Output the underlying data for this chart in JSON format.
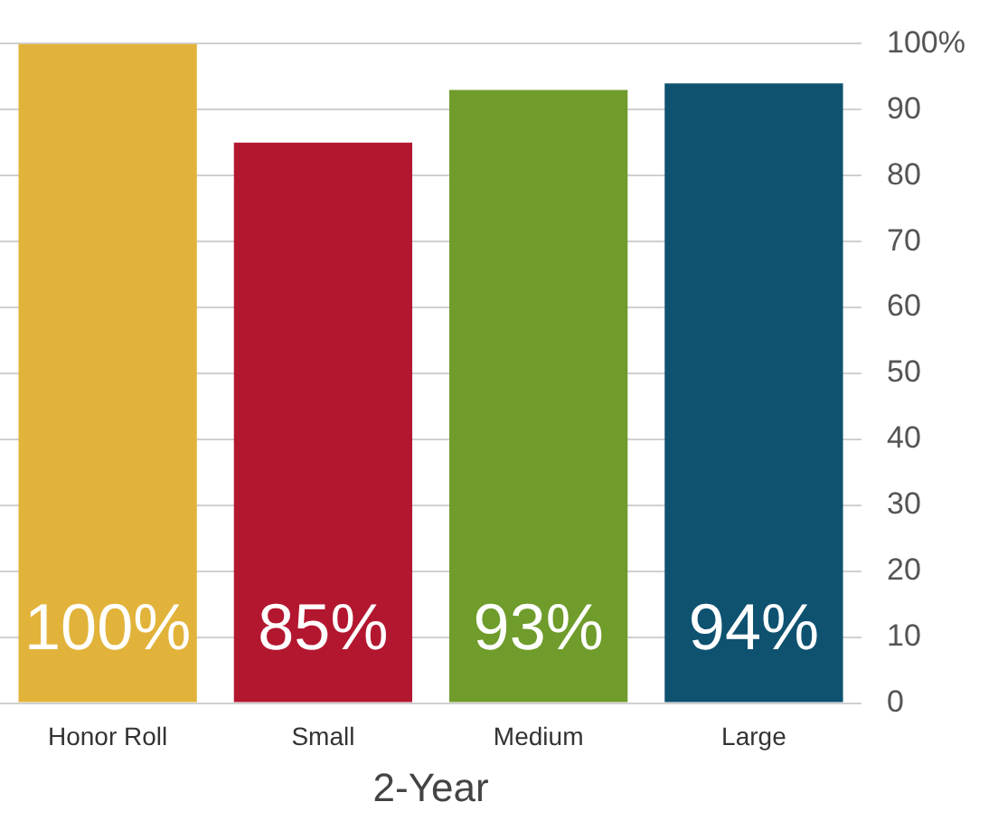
{
  "chart_data": {
    "type": "bar",
    "xlabel": "2-Year",
    "categories": [
      "Honor Roll",
      "Small",
      "Medium",
      "Large"
    ],
    "values": [
      100,
      85,
      93,
      94
    ],
    "colors": [
      "#e2b33a",
      "#b3172f",
      "#6f9c2b",
      "#0e5270"
    ],
    "value_labels": [
      "100%",
      "85%",
      "93%",
      "94%"
    ],
    "ylim": [
      0,
      100
    ],
    "yticks": [
      0,
      10,
      20,
      30,
      40,
      50,
      60,
      70,
      80,
      90,
      {
        "value": 100,
        "label": "100%"
      }
    ],
    "grid": "y",
    "legend": false
  }
}
